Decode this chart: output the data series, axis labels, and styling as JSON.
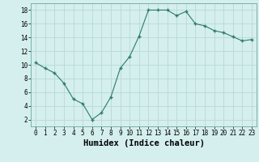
{
  "x": [
    0,
    1,
    2,
    3,
    4,
    5,
    6,
    7,
    8,
    9,
    10,
    11,
    12,
    13,
    14,
    15,
    16,
    17,
    18,
    19,
    20,
    21,
    22,
    23
  ],
  "y": [
    10.3,
    9.5,
    8.8,
    7.3,
    5.0,
    4.3,
    2.0,
    3.0,
    5.3,
    9.5,
    11.2,
    14.2,
    18.0,
    18.0,
    18.0,
    17.2,
    17.8,
    16.0,
    15.7,
    15.0,
    14.7,
    14.1,
    13.5,
    13.7
  ],
  "xlabel": "Humidex (Indice chaleur)",
  "bg_color": "#d4efee",
  "line_color": "#2d7a6e",
  "marker_color": "#2d7a6e",
  "grid_color": "#b8d8d5",
  "xlim": [
    -0.5,
    23.5
  ],
  "ylim": [
    1,
    19
  ],
  "yticks": [
    2,
    4,
    6,
    8,
    10,
    12,
    14,
    16,
    18
  ],
  "xticks": [
    0,
    1,
    2,
    3,
    4,
    5,
    6,
    7,
    8,
    9,
    10,
    11,
    12,
    13,
    14,
    15,
    16,
    17,
    18,
    19,
    20,
    21,
    22,
    23
  ],
  "tick_fontsize": 5.5,
  "xlabel_fontsize": 7.5
}
